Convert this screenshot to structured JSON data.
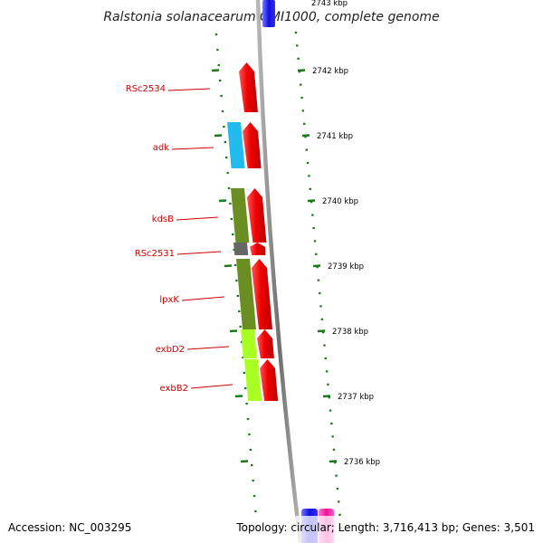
{
  "title": "Ralstonia solanacearum GMI1000, complete genome",
  "top_tick_label": "2743 kbp",
  "footer": {
    "accession": "Accession: NC_003295",
    "summary": "Topology: circular; Length: 3,716,413 bp; Genes: 3,501"
  },
  "ticks": [
    {
      "label": "2742 kbp"
    },
    {
      "label": "2741 kbp"
    },
    {
      "label": "2740 kbp"
    },
    {
      "label": "2739 kbp"
    },
    {
      "label": "2738 kbp"
    },
    {
      "label": "2737 kbp"
    },
    {
      "label": "2736 kbp"
    }
  ],
  "genes": [
    {
      "label": "RSc2534",
      "cog_color": null,
      "strand_color": "#ff0000"
    },
    {
      "label": "adk",
      "cog_color": "#22bbee",
      "strand_color": "#ff0000"
    },
    {
      "label": "kdsB",
      "cog_color": "#6b8e23",
      "strand_color": "#ff0000"
    },
    {
      "label": "RSc2531",
      "cog_color": "#666666",
      "strand_color": "#ff0000"
    },
    {
      "label": "lpxK",
      "cog_color": "#6b8e23",
      "strand_color": "#ff0000"
    },
    {
      "label": "exbD2",
      "cog_color": "#aaff22",
      "strand_color": "#ff0000"
    },
    {
      "label": "exbB2",
      "cog_color": "#aaff22",
      "strand_color": "#ff0000"
    }
  ],
  "colors": {
    "backbone": "#888888",
    "tick": "#1a7a1a",
    "label_line": "#cc0000"
  }
}
